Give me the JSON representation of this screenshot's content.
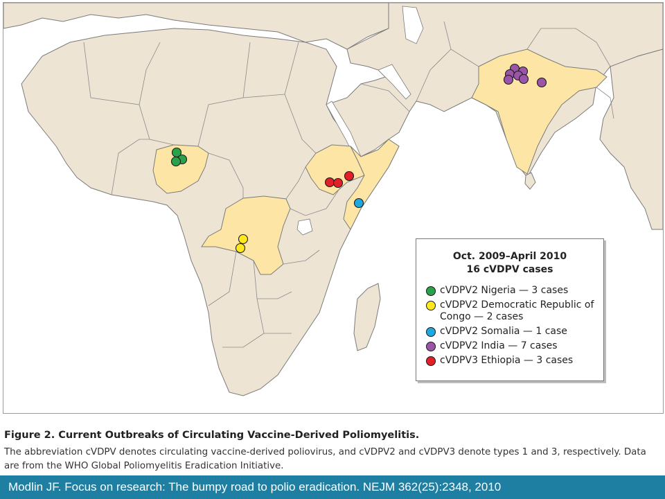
{
  "legend": {
    "title_line1": "Oct. 2009–April 2010",
    "title_line2": "16 cVDPV cases",
    "items": [
      {
        "text": "cVDPV2 Nigeria — 3 cases",
        "color": "#2aa24a"
      },
      {
        "text": "cVDPV2 Democratic Republic of Congo — 2 cases",
        "color": "#ffe81c"
      },
      {
        "text": "cVDPV2 Somalia — 1 case",
        "color": "#1fa8e0"
      },
      {
        "text": "cVDPV2 India — 7 cases",
        "color": "#9a55a8"
      },
      {
        "text": "cVDPV3 Ethiopia — 3 cases",
        "color": "#e2202a"
      }
    ]
  },
  "colors": {
    "highlight_land": "#fde6a5",
    "land": "#ede4d4",
    "citation_bar": "#1e7fa2"
  },
  "figure": {
    "title": "Figure 2. Current Outbreaks of Circulating Vaccine-Derived Poliomyelitis.",
    "caption": "The abbreviation cVDPV denotes circulating vaccine-derived poliovirus, and cVDPV2 and cVDPV3 denote types 1 and 3, respectively. Data are from the WHO Global Poliomyelitis Eradication Initiative."
  },
  "citation": "Modlin JF. Focus on research: The bumpy road to polio eradication. NEJM 362(25):2348, 2010"
}
